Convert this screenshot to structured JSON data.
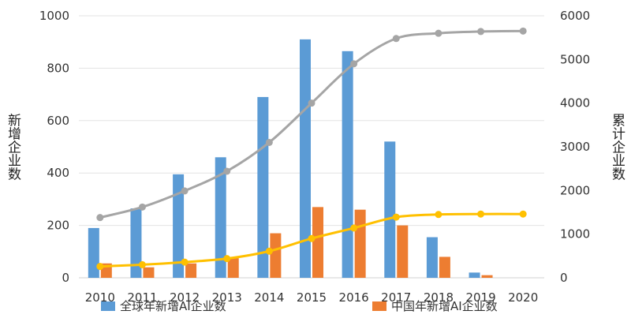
{
  "chart_data": {
    "type": "bar",
    "categories": [
      "2010",
      "2011",
      "2012",
      "2013",
      "2014",
      "2015",
      "2016",
      "2017",
      "2018",
      "2019",
      "2020"
    ],
    "left_axis": {
      "label": "新增企业数",
      "min": 0,
      "max": 1000,
      "ticks": [
        0,
        200,
        400,
        600,
        800,
        1000
      ]
    },
    "right_axis": {
      "label": "累计企业数",
      "min": 0,
      "max": 6000,
      "ticks": [
        0,
        1000,
        2000,
        3000,
        4000,
        5000,
        6000
      ]
    },
    "bar_series": [
      {
        "name": "全球年新增AI企业数",
        "color": "#5b9bd5",
        "values": [
          190,
          265,
          395,
          460,
          690,
          910,
          865,
          520,
          155,
          20,
          0
        ]
      },
      {
        "name": "中国年新增AI企业数",
        "color": "#ed7d31",
        "values": [
          55,
          40,
          55,
          75,
          170,
          270,
          260,
          200,
          80,
          10,
          0
        ]
      }
    ],
    "line_series": [
      {
        "color": "#a5a5a5",
        "axis": "right",
        "values": [
          1380,
          1620,
          1990,
          2440,
          3100,
          4000,
          4900,
          5480,
          5600,
          5640,
          5650
        ]
      },
      {
        "color": "#ffc000",
        "axis": "right",
        "values": [
          260,
          300,
          360,
          440,
          610,
          900,
          1140,
          1390,
          1450,
          1460,
          1460
        ]
      }
    ],
    "grid": true,
    "legend": "bottom"
  }
}
